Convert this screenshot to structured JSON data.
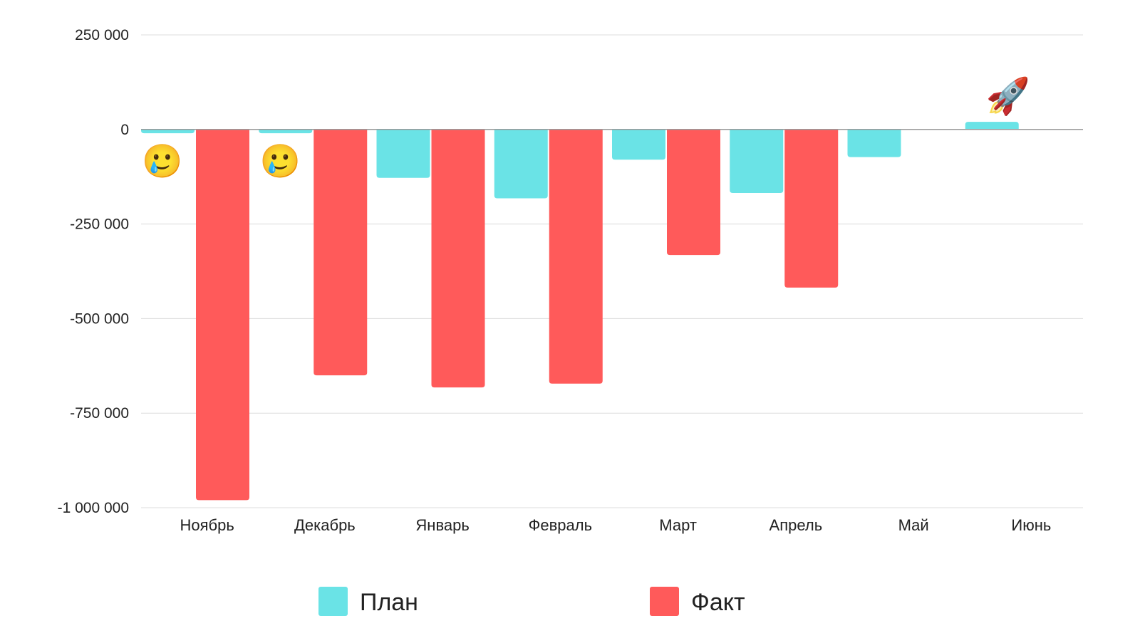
{
  "chart_data": {
    "type": "bar",
    "categories": [
      "Ноябрь",
      "Декабрь",
      "Январь",
      "Февраль",
      "Март",
      "Апрель",
      "Май",
      "Июнь"
    ],
    "series": [
      {
        "name": "План",
        "color": "#6AE3E6",
        "values": [
          -10000,
          -10000,
          -128000,
          -182000,
          -80000,
          -168000,
          -73000,
          20000
        ]
      },
      {
        "name": "Факт",
        "color": "#FF5A5A",
        "values": [
          -980000,
          -650000,
          -682000,
          -672000,
          -332000,
          -418000,
          null,
          null
        ]
      }
    ],
    "ylim": [
      -1000000,
      250000
    ],
    "yticks": [
      250000,
      0,
      -250000,
      -500000,
      -750000,
      -1000000
    ],
    "ytick_labels": [
      "250 000",
      "0",
      "-250 000",
      "-500 000",
      "-750 000",
      "-1 000 000"
    ],
    "grid": true,
    "legend_position": "bottom",
    "annotations": [
      {
        "category": "Ноябрь",
        "icon": "crying-smile-icon",
        "glyph": "🥲"
      },
      {
        "category": "Декабрь",
        "icon": "crying-smile-icon",
        "glyph": "🥲"
      },
      {
        "category": "Июнь",
        "icon": "rocket-icon",
        "glyph": "🚀"
      }
    ],
    "title": "",
    "xlabel": "",
    "ylabel": ""
  }
}
